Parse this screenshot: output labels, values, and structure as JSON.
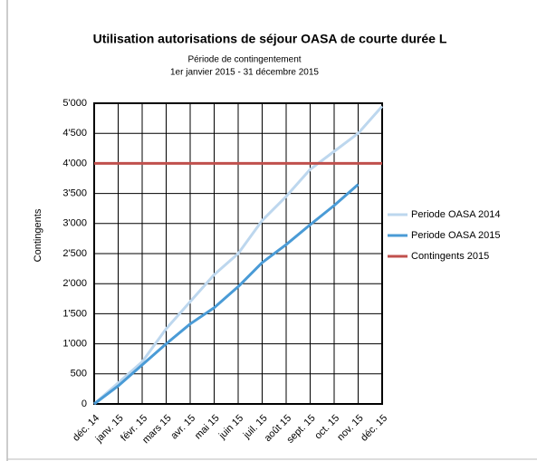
{
  "chart_data": {
    "type": "line",
    "title": "Utilisation autorisations de séjour OASA de courte durée L",
    "subtitle": [
      "Période de contingentement",
      "1er janvier 2015 - 31 décembre 2015"
    ],
    "y_label": "Contingents",
    "categories": [
      "déc. 14",
      "janv. 15",
      "févr. 15",
      "mars 15",
      "avr. 15",
      "mai 15",
      "juin 15",
      "juil. 15",
      "août 15",
      "sept. 15",
      "oct. 15",
      "nov. 15",
      "déc. 15"
    ],
    "series": [
      {
        "name": "Periode OASA 2014",
        "color": "#bdd7ee",
        "values": [
          0,
          350,
          700,
          1250,
          1700,
          2150,
          2500,
          3050,
          3450,
          3900,
          4200,
          4500,
          4950
        ]
      },
      {
        "name": "Periode OASA 2015",
        "color": "#4a9bd6",
        "values": [
          0,
          300,
          650,
          1000,
          1330,
          1600,
          1950,
          2350,
          2650,
          2980,
          3300,
          3650,
          null
        ]
      },
      {
        "name": "Contingents 2015",
        "color": "#c0504d",
        "values": [
          4000,
          4000,
          4000,
          4000,
          4000,
          4000,
          4000,
          4000,
          4000,
          4000,
          4000,
          4000,
          4000
        ]
      }
    ],
    "ylim": [
      0,
      5000
    ],
    "yticks": [
      0,
      500,
      {
        "value": 1000,
        "label": "1'000"
      },
      {
        "value": 1500,
        "label": "1'500"
      },
      {
        "value": 2000,
        "label": "2'000"
      },
      {
        "value": 2500,
        "label": "2'500"
      },
      {
        "value": 3000,
        "label": "3'000"
      },
      {
        "value": 3500,
        "label": "3'500"
      },
      {
        "value": 4000,
        "label": "4'000"
      },
      {
        "value": 4500,
        "label": "4'500"
      },
      {
        "value": 5000,
        "label": "5'000"
      }
    ],
    "grid": true,
    "legend": "right"
  }
}
